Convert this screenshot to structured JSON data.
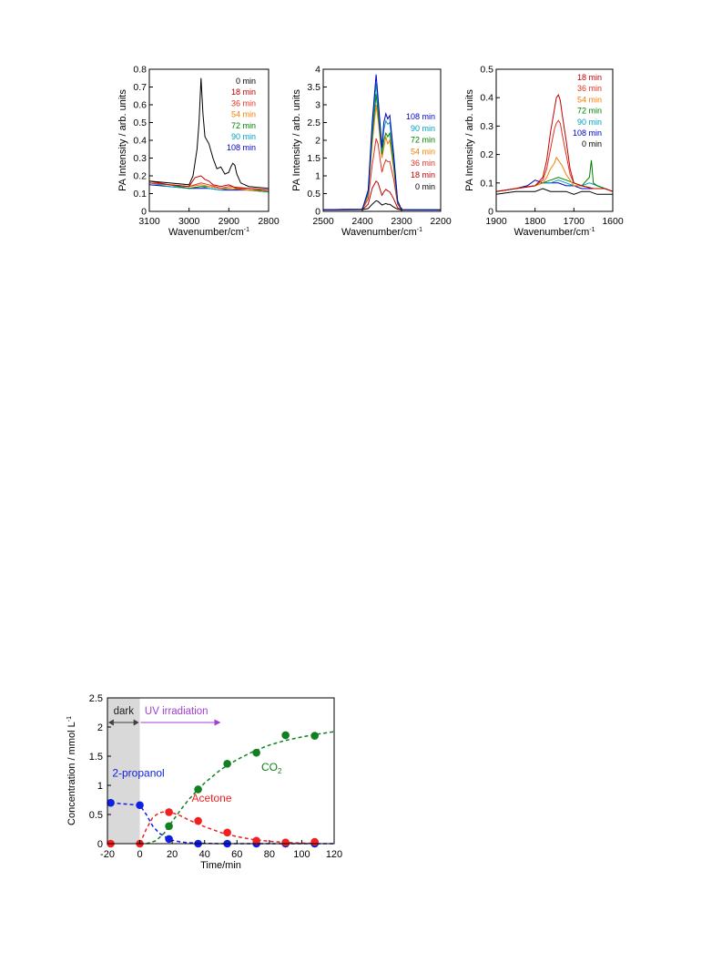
{
  "chart_data": [
    {
      "type": "line",
      "xlabel": "Wavenumber/cm",
      "xlabel_sup": "-1",
      "ylabel": "PA Intensity / arb. units",
      "xlim": [
        3100,
        2800
      ],
      "ylim": [
        0,
        0.8
      ],
      "x_ticks": [
        3100,
        3000,
        2900,
        2800
      ],
      "y_ticks": [
        0,
        0.1,
        0.2,
        0.3,
        0.4,
        0.5,
        0.6,
        0.7,
        0.8
      ],
      "legend_placement": "top-right",
      "legend": [
        "0 min",
        "18 min",
        "36 min",
        "54 min",
        "72 min",
        "90 min",
        "108 min"
      ],
      "series": [
        {
          "name": "0 min",
          "color": "#000000",
          "x": [
            3100,
            3050,
            3000,
            2990,
            2980,
            2975,
            2970,
            2965,
            2960,
            2950,
            2940,
            2930,
            2920,
            2910,
            2900,
            2895,
            2890,
            2885,
            2880,
            2870,
            2850,
            2800
          ],
          "y": [
            0.17,
            0.16,
            0.15,
            0.2,
            0.35,
            0.5,
            0.75,
            0.55,
            0.42,
            0.38,
            0.3,
            0.24,
            0.25,
            0.21,
            0.22,
            0.25,
            0.27,
            0.26,
            0.21,
            0.16,
            0.14,
            0.13
          ]
        },
        {
          "name": "18 min",
          "color": "#c00000",
          "x": [
            3100,
            3050,
            3000,
            2985,
            2970,
            2960,
            2950,
            2940,
            2920,
            2900,
            2880,
            2850,
            2800
          ],
          "y": [
            0.17,
            0.15,
            0.14,
            0.19,
            0.2,
            0.18,
            0.17,
            0.15,
            0.14,
            0.15,
            0.13,
            0.13,
            0.12
          ]
        },
        {
          "name": "36 min",
          "color": "#e03020",
          "x": [
            3100,
            3050,
            3000,
            2970,
            2950,
            2920,
            2900,
            2850,
            2800
          ],
          "y": [
            0.16,
            0.15,
            0.14,
            0.16,
            0.15,
            0.13,
            0.14,
            0.13,
            0.12
          ]
        },
        {
          "name": "54 min",
          "color": "#f08000",
          "x": [
            3100,
            3050,
            3000,
            2970,
            2950,
            2920,
            2900,
            2850,
            2800
          ],
          "y": [
            0.16,
            0.15,
            0.14,
            0.15,
            0.14,
            0.13,
            0.13,
            0.12,
            0.12
          ]
        },
        {
          "name": "72 min",
          "color": "#008000",
          "x": [
            3100,
            3050,
            3000,
            2970,
            2950,
            2920,
            2900,
            2850,
            2800
          ],
          "y": [
            0.16,
            0.15,
            0.13,
            0.14,
            0.14,
            0.13,
            0.13,
            0.12,
            0.11
          ]
        },
        {
          "name": "90 min",
          "color": "#00a0c0",
          "x": [
            3100,
            3050,
            3000,
            2970,
            2950,
            2920,
            2900,
            2850,
            2800
          ],
          "y": [
            0.16,
            0.14,
            0.13,
            0.14,
            0.13,
            0.12,
            0.13,
            0.12,
            0.11
          ]
        },
        {
          "name": "108 min",
          "color": "#0000c0",
          "x": [
            3100,
            3050,
            3000,
            2970,
            2950,
            2920,
            2900,
            2850,
            2800
          ],
          "y": [
            0.15,
            0.14,
            0.13,
            0.13,
            0.13,
            0.12,
            0.12,
            0.12,
            0.11
          ]
        }
      ]
    },
    {
      "type": "line",
      "xlabel": "Wavenumber/cm",
      "xlabel_sup": "-1",
      "ylabel": "PA Intensity / arb. units",
      "xlim": [
        2500,
        2200
      ],
      "ylim": [
        0,
        4
      ],
      "x_ticks": [
        2500,
        2400,
        2300,
        2200
      ],
      "y_ticks": [
        0,
        0.5,
        1,
        1.5,
        2,
        2.5,
        3,
        3.5,
        4
      ],
      "legend_placement": "right",
      "legend": [
        "108 min",
        "90 min",
        "72 min",
        "54 min",
        "36 min",
        "18 min",
        "0 min"
      ],
      "series": [
        {
          "name": "108 min",
          "color": "#0000c0",
          "x": [
            2500,
            2400,
            2385,
            2375,
            2365,
            2360,
            2350,
            2345,
            2340,
            2335,
            2330,
            2320,
            2310,
            2300,
            2200
          ],
          "y": [
            0.05,
            0.06,
            0.6,
            2.5,
            3.85,
            3.2,
            1.8,
            2.5,
            2.75,
            2.6,
            2.7,
            1.6,
            0.3,
            0.05,
            0.04
          ]
        },
        {
          "name": "90 min",
          "color": "#00a0c0",
          "x": [
            2500,
            2400,
            2385,
            2375,
            2365,
            2360,
            2350,
            2345,
            2340,
            2335,
            2330,
            2320,
            2310,
            2300,
            2200
          ],
          "y": [
            0.05,
            0.06,
            0.55,
            2.3,
            3.6,
            3.0,
            1.7,
            2.3,
            2.55,
            2.45,
            2.5,
            1.5,
            0.3,
            0.05,
            0.04
          ]
        },
        {
          "name": "72 min",
          "color": "#008000",
          "x": [
            2500,
            2400,
            2385,
            2375,
            2365,
            2360,
            2350,
            2345,
            2340,
            2335,
            2330,
            2320,
            2310,
            2300,
            2200
          ],
          "y": [
            0.05,
            0.06,
            0.5,
            2.1,
            3.3,
            2.8,
            1.6,
            2.0,
            2.2,
            2.1,
            2.2,
            1.3,
            0.25,
            0.05,
            0.04
          ]
        },
        {
          "name": "54 min",
          "color": "#f08000",
          "x": [
            2500,
            2400,
            2385,
            2375,
            2365,
            2360,
            2350,
            2345,
            2340,
            2335,
            2330,
            2320,
            2310,
            2300,
            2200
          ],
          "y": [
            0.05,
            0.06,
            0.45,
            1.9,
            3.0,
            2.6,
            1.5,
            1.8,
            2.1,
            1.9,
            2.0,
            1.2,
            0.25,
            0.05,
            0.04
          ]
        },
        {
          "name": "36 min",
          "color": "#e03020",
          "x": [
            2500,
            2400,
            2385,
            2375,
            2365,
            2360,
            2350,
            2345,
            2340,
            2335,
            2330,
            2320,
            2310,
            2300,
            2200
          ],
          "y": [
            0.05,
            0.06,
            0.35,
            1.3,
            2.05,
            1.9,
            1.1,
            1.3,
            1.45,
            1.4,
            1.4,
            0.9,
            0.2,
            0.05,
            0.04
          ]
        },
        {
          "name": "18 min",
          "color": "#c00000",
          "x": [
            2500,
            2400,
            2385,
            2375,
            2365,
            2360,
            2350,
            2345,
            2340,
            2335,
            2330,
            2320,
            2310,
            2300,
            2200
          ],
          "y": [
            0.05,
            0.05,
            0.2,
            0.65,
            0.85,
            0.8,
            0.45,
            0.55,
            0.62,
            0.58,
            0.55,
            0.35,
            0.1,
            0.05,
            0.04
          ]
        },
        {
          "name": "0 min",
          "color": "#000000",
          "x": [
            2500,
            2400,
            2385,
            2375,
            2365,
            2360,
            2350,
            2345,
            2340,
            2335,
            2330,
            2320,
            2310,
            2300,
            2200
          ],
          "y": [
            0.04,
            0.05,
            0.08,
            0.2,
            0.3,
            0.28,
            0.18,
            0.2,
            0.22,
            0.2,
            0.2,
            0.12,
            0.06,
            0.04,
            0.04
          ]
        }
      ]
    },
    {
      "type": "line",
      "xlabel": "Wavenumber/cm",
      "xlabel_sup": "-1",
      "ylabel": "PA Intensity / arb. units",
      "xlim": [
        1900,
        1600
      ],
      "ylim": [
        0,
        0.5
      ],
      "x_ticks": [
        1900,
        1800,
        1700,
        1600
      ],
      "y_ticks": [
        0,
        0.1,
        0.2,
        0.3,
        0.4,
        0.5
      ],
      "legend_placement": "top-right",
      "legend": [
        "18 min",
        "36 min",
        "54 min",
        "72 min",
        "90 min",
        "108 min",
        "0 min"
      ],
      "series": [
        {
          "name": "18 min",
          "color": "#c00000",
          "x": [
            1900,
            1850,
            1800,
            1780,
            1770,
            1760,
            1750,
            1745,
            1740,
            1735,
            1730,
            1720,
            1710,
            1700,
            1680,
            1650,
            1620,
            1600
          ],
          "y": [
            0.07,
            0.08,
            0.09,
            0.12,
            0.18,
            0.28,
            0.36,
            0.4,
            0.41,
            0.39,
            0.34,
            0.25,
            0.15,
            0.1,
            0.09,
            0.08,
            0.08,
            0.07
          ]
        },
        {
          "name": "36 min",
          "color": "#e03020",
          "x": [
            1900,
            1850,
            1800,
            1780,
            1770,
            1760,
            1750,
            1745,
            1740,
            1735,
            1730,
            1720,
            1710,
            1700,
            1680,
            1650,
            1620,
            1600
          ],
          "y": [
            0.07,
            0.08,
            0.09,
            0.11,
            0.15,
            0.22,
            0.29,
            0.31,
            0.32,
            0.31,
            0.27,
            0.2,
            0.13,
            0.1,
            0.09,
            0.08,
            0.08,
            0.07
          ]
        },
        {
          "name": "54 min",
          "color": "#f08000",
          "x": [
            1900,
            1850,
            1800,
            1780,
            1770,
            1760,
            1750,
            1745,
            1740,
            1735,
            1730,
            1720,
            1710,
            1700,
            1680,
            1650,
            1620,
            1600
          ],
          "y": [
            0.07,
            0.08,
            0.09,
            0.1,
            0.12,
            0.15,
            0.17,
            0.19,
            0.18,
            0.17,
            0.16,
            0.13,
            0.11,
            0.09,
            0.09,
            0.08,
            0.08,
            0.07
          ]
        },
        {
          "name": "72 min",
          "color": "#008000",
          "x": [
            1900,
            1850,
            1800,
            1780,
            1760,
            1740,
            1720,
            1700,
            1680,
            1660,
            1655,
            1650,
            1640,
            1620,
            1600
          ],
          "y": [
            0.07,
            0.08,
            0.09,
            0.1,
            0.11,
            0.12,
            0.11,
            0.1,
            0.09,
            0.12,
            0.18,
            0.1,
            0.09,
            0.08,
            0.07
          ]
        },
        {
          "name": "90 min",
          "color": "#00a0c0",
          "x": [
            1900,
            1850,
            1800,
            1780,
            1760,
            1740,
            1720,
            1700,
            1680,
            1660,
            1640,
            1620,
            1600
          ],
          "y": [
            0.07,
            0.08,
            0.09,
            0.1,
            0.1,
            0.11,
            0.1,
            0.09,
            0.09,
            0.1,
            0.09,
            0.08,
            0.07
          ]
        },
        {
          "name": "108 min",
          "color": "#0000c0",
          "x": [
            1900,
            1850,
            1820,
            1800,
            1780,
            1760,
            1740,
            1720,
            1700,
            1680,
            1660,
            1640,
            1620,
            1600
          ],
          "y": [
            0.07,
            0.08,
            0.09,
            0.11,
            0.1,
            0.1,
            0.1,
            0.09,
            0.09,
            0.08,
            0.08,
            0.08,
            0.08,
            0.07
          ]
        },
        {
          "name": "0 min",
          "color": "#000000",
          "x": [
            1900,
            1850,
            1800,
            1780,
            1760,
            1740,
            1720,
            1700,
            1680,
            1660,
            1640,
            1620,
            1600
          ],
          "y": [
            0.06,
            0.07,
            0.07,
            0.08,
            0.07,
            0.07,
            0.07,
            0.06,
            0.07,
            0.07,
            0.06,
            0.06,
            0.06
          ]
        }
      ]
    },
    {
      "type": "scatter",
      "xlabel": "Time/min",
      "ylabel": "Concentration / mmol L",
      "ylabel_sup": "-1",
      "xlim": [
        -20,
        120
      ],
      "ylim": [
        0,
        2.5
      ],
      "x_ticks": [
        -20,
        0,
        20,
        40,
        60,
        80,
        100,
        120
      ],
      "y_ticks": [
        0,
        0.5,
        1,
        1.5,
        2,
        2.5
      ],
      "shaded_region": {
        "x": [
          -20,
          0
        ],
        "label": "dark"
      },
      "annotations": [
        "dark",
        "UV irradiation"
      ],
      "series": [
        {
          "name": "2-propanol",
          "color": "#1020e0",
          "x": [
            -18,
            0,
            18,
            36,
            54,
            72,
            90,
            108
          ],
          "y": [
            0.7,
            0.66,
            0.08,
            0.0,
            0.0,
            0.0,
            0.0,
            0.0
          ],
          "fit": {
            "x": [
              -18,
              0,
              4,
              8,
              12,
              16,
              20,
              25,
              30,
              40,
              50,
              60,
              80,
              100,
              120
            ],
            "y": [
              0.7,
              0.66,
              0.5,
              0.3,
              0.18,
              0.11,
              0.06,
              0.03,
              0.015,
              0.004,
              0.0,
              0.0,
              0.0,
              0.0,
              0.0
            ]
          }
        },
        {
          "name": "Acetone",
          "color": "#f02020",
          "x": [
            -18,
            0,
            18,
            36,
            54,
            72,
            90,
            108
          ],
          "y": [
            0.0,
            0.0,
            0.54,
            0.39,
            0.19,
            0.05,
            0.02,
            0.03
          ],
          "fit": {
            "x": [
              0,
              4,
              8,
              12,
              16,
              20,
              25,
              30,
              40,
              50,
              60,
              70,
              80,
              90,
              100,
              110
            ],
            "y": [
              0.0,
              0.25,
              0.45,
              0.53,
              0.55,
              0.53,
              0.48,
              0.41,
              0.29,
              0.19,
              0.12,
              0.07,
              0.04,
              0.02,
              0.01,
              0.005
            ]
          }
        },
        {
          "name": "CO2",
          "label_main": "CO",
          "label_sub": "2",
          "color": "#108020",
          "x": [
            18,
            36,
            54,
            72,
            90,
            108
          ],
          "y": [
            0.3,
            0.93,
            1.37,
            1.56,
            1.86,
            1.85
          ],
          "fit": {
            "x": [
              4,
              10,
              15,
              20,
              25,
              30,
              35,
              40,
              50,
              60,
              70,
              80,
              90,
              100,
              110,
              120
            ],
            "y": [
              0.0,
              0.05,
              0.18,
              0.38,
              0.57,
              0.75,
              0.9,
              1.04,
              1.27,
              1.44,
              1.58,
              1.69,
              1.77,
              1.83,
              1.88,
              1.92
            ]
          }
        }
      ]
    }
  ]
}
